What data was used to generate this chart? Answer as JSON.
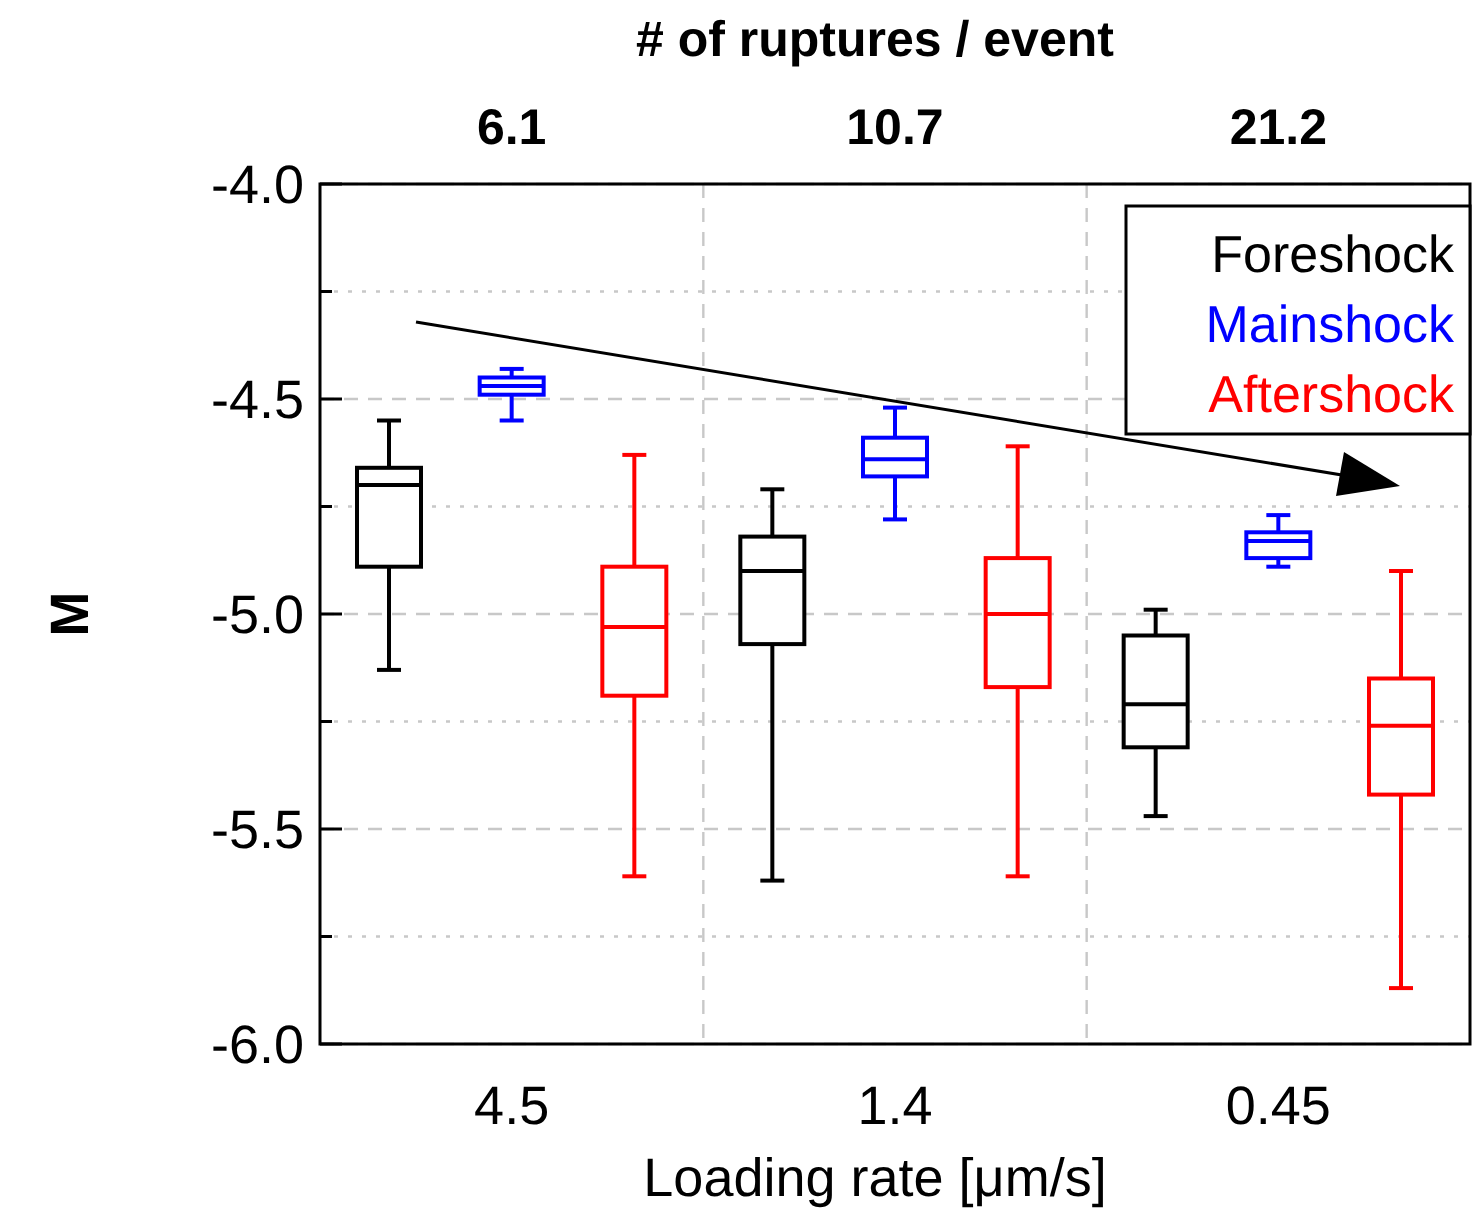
{
  "chart_data": {
    "type": "box",
    "xlabel": "Loading rate [μm/s]",
    "ylabel": "M",
    "x2label": "# of ruptures / event",
    "categories": [
      "4.5",
      "1.4",
      "0.45"
    ],
    "series": [
      {
        "name": "Foreshock",
        "color": "#000000",
        "boxes": [
          {
            "low": -5.13,
            "q1": -4.89,
            "median": -4.7,
            "q3": -4.66,
            "high": -4.55
          },
          {
            "low": -5.62,
            "q1": -5.07,
            "median": -4.9,
            "q3": -4.82,
            "high": -4.71
          },
          {
            "low": -5.47,
            "q1": -5.31,
            "median": -5.21,
            "q3": -5.05,
            "high": -4.99
          }
        ]
      },
      {
        "name": "Mainshock",
        "color": "#0000ff",
        "boxes": [
          {
            "low": -4.55,
            "q1": -4.49,
            "median": -4.47,
            "q3": -4.45,
            "high": -4.43
          },
          {
            "low": -4.78,
            "q1": -4.68,
            "median": -4.64,
            "q3": -4.59,
            "high": -4.52
          },
          {
            "low": -4.89,
            "q1": -4.87,
            "median": -4.83,
            "q3": -4.81,
            "high": -4.77
          }
        ]
      },
      {
        "name": "Aftershock",
        "color": "#ff0000",
        "boxes": [
          {
            "low": -5.61,
            "q1": -5.19,
            "median": -5.03,
            "q3": -4.89,
            "high": -4.63
          },
          {
            "low": -5.61,
            "q1": -5.17,
            "median": -5.0,
            "q3": -4.87,
            "high": -4.61
          },
          {
            "low": -5.87,
            "q1": -5.42,
            "median": -5.26,
            "q3": -5.15,
            "high": -4.9
          }
        ]
      }
    ],
    "ylim": [
      -6.0,
      -4.0
    ],
    "yticks": [
      {
        "value": -6.0,
        "label": "-6.0"
      },
      {
        "value": -5.75,
        "label": null
      },
      {
        "value": -5.5,
        "label": "-5.5"
      },
      {
        "value": -5.25,
        "label": null
      },
      {
        "value": -5.0,
        "label": "-5.0"
      },
      {
        "value": -4.75,
        "label": null
      },
      {
        "value": -4.5,
        "label": "-4.5"
      },
      {
        "value": -4.25,
        "label": null
      },
      {
        "value": -4.0,
        "label": "-4.0"
      }
    ],
    "annotations": [
      "6.1",
      "10.7",
      "21.2"
    ],
    "grid": true,
    "legend": "top right"
  }
}
